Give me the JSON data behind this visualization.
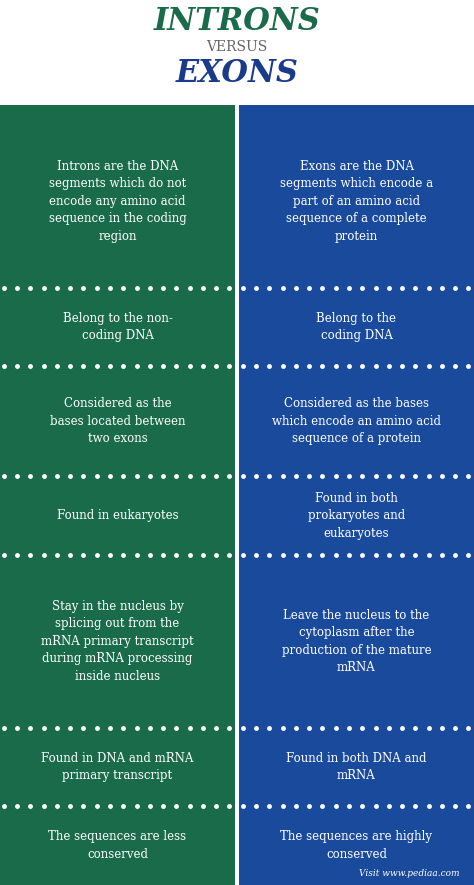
{
  "title1": "INTRONS",
  "versus": "VERSUS",
  "title2": "EXONS",
  "title1_color": "#1a6b4a",
  "title2_color": "#1a3a8c",
  "versus_color": "#666666",
  "left_bg": "#1a6b4a",
  "right_bg": "#1a4a9c",
  "header_bg": "#ffffff",
  "text_color": "#ffffff",
  "rows": [
    {
      "left": "Introns are the DNA\nsegments which do not\nencode any amino acid\nsequence in the coding\nregion",
      "right": "Exons are the DNA\nsegments which encode a\npart of an amino acid\nsequence of a complete\nprotein"
    },
    {
      "left": "Belong to the non-\ncoding DNA",
      "right": "Belong to the\ncoding DNA"
    },
    {
      "left": "Considered as the\nbases located between\ntwo exons",
      "right": "Considered as the bases\nwhich encode an amino acid\nsequence of a protein"
    },
    {
      "left": "Found in eukaryotes",
      "right": "Found in both\nprokaryotes and\neukaryotes"
    },
    {
      "left": "Stay in the nucleus by\nsplicing out from the\nmRNA primary transcript\nduring mRNA processing\ninside nucleus",
      "right": "Leave the nucleus to the\ncytoplasm after the\nproduction of the mature\nmRNA"
    },
    {
      "left": "Found in DNA and mRNA\nprimary transcript",
      "right": "Found in both DNA and\nmRNA"
    },
    {
      "left": "The sequences are less\nconserved",
      "right": "The sequences are highly\nconserved"
    }
  ],
  "watermark": "Visit www.pediaa.com",
  "fig_width": 4.74,
  "fig_height": 8.85,
  "dpi": 100
}
